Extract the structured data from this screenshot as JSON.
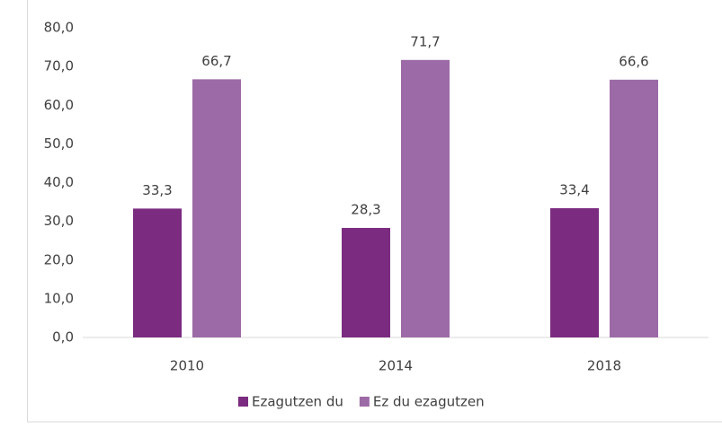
{
  "chart_data": {
    "type": "bar",
    "categories": [
      "2010",
      "2014",
      "2018"
    ],
    "series": [
      {
        "name": "Ezagutzen du",
        "color": "#7b2c80",
        "values": [
          33.3,
          28.3,
          33.4
        ],
        "value_labels": [
          "33,3",
          "28,3",
          "33,4"
        ]
      },
      {
        "name": "Ez du ezagutzen",
        "color": "#9c6aa6",
        "values": [
          66.7,
          71.7,
          66.6
        ],
        "value_labels": [
          "66,7",
          "71,7",
          "66,6"
        ]
      }
    ],
    "ylim": [
      0,
      80
    ],
    "yticks": [
      {
        "value": 0,
        "label": "0,0"
      },
      {
        "value": 10,
        "label": "10,0"
      },
      {
        "value": 20,
        "label": "20,0"
      },
      {
        "value": 30,
        "label": "30,0"
      },
      {
        "value": 40,
        "label": "40,0"
      },
      {
        "value": 50,
        "label": "50,0"
      },
      {
        "value": 60,
        "label": "60,0"
      },
      {
        "value": 70,
        "label": "70,0"
      },
      {
        "value": 80,
        "label": "80,0"
      }
    ],
    "grid": false,
    "legend": "bottom"
  }
}
